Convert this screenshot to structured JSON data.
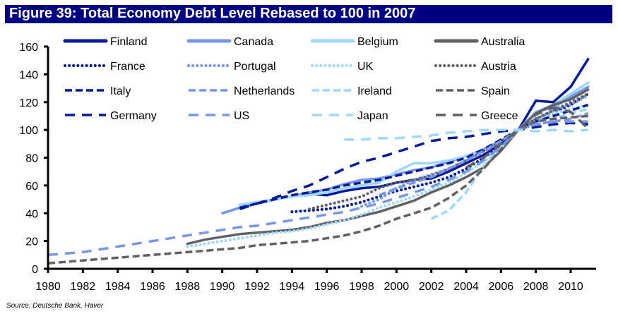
{
  "title": "Figure 39: Total Economy Debt Level Rebased to 100 in 2007",
  "source": "Source: Deutsche Bank, Haver",
  "chart_data": {
    "type": "line",
    "title": "Figure 39: Total Economy Debt Level Rebased to 100 in 2007",
    "xlabel": "",
    "ylabel": "",
    "xlim": [
      1980,
      2011
    ],
    "ylim": [
      0,
      160
    ],
    "y_ticks": [
      0,
      20,
      40,
      60,
      80,
      100,
      120,
      140,
      160
    ],
    "x_ticks": [
      1980,
      1982,
      1984,
      1986,
      1988,
      1990,
      1992,
      1994,
      1996,
      1998,
      2000,
      2002,
      2004,
      2006,
      2008,
      2010
    ],
    "grid": false,
    "legend_position": "top",
    "series": [
      {
        "name": "Finland",
        "color": "#001A9A",
        "style": "solid",
        "x": [
          1994,
          1995,
          1996,
          1997,
          1998,
          1999,
          2000,
          2001,
          2002,
          2003,
          2004,
          2005,
          2006,
          2007,
          2008,
          2009,
          2010,
          2011
        ],
        "y": [
          52,
          54,
          53,
          56,
          58,
          59,
          62,
          64,
          65,
          70,
          76,
          82,
          90,
          100,
          121,
          120,
          131,
          151
        ]
      },
      {
        "name": "Canada",
        "color": "#7896E6",
        "style": "solid",
        "x": [
          1990,
          1991,
          1992,
          1993,
          1994,
          1995,
          1996,
          1997,
          1998,
          1999,
          2000,
          2001,
          2002,
          2003,
          2004,
          2005,
          2006,
          2007,
          2008,
          2009,
          2010,
          2011
        ],
        "y": [
          40,
          44,
          47,
          50,
          52,
          55,
          57,
          61,
          64,
          65,
          68,
          71,
          73,
          77,
          81,
          86,
          92,
          100,
          113,
          116,
          124,
          131
        ]
      },
      {
        "name": "Belgium",
        "color": "#9ED8F6",
        "style": "solid",
        "x": [
          1991,
          1992,
          1993,
          1994,
          1995,
          1996,
          1997,
          1998,
          1999,
          2000,
          2001,
          2002,
          2003,
          2004,
          2005,
          2006,
          2007,
          2008,
          2009,
          2010,
          2011
        ],
        "y": [
          46,
          48,
          50,
          52,
          53,
          55,
          58,
          60,
          62,
          70,
          76,
          76,
          78,
          81,
          85,
          92,
          100,
          113,
          118,
          126,
          134
        ]
      },
      {
        "name": "Australia",
        "color": "#606068",
        "style": "solid",
        "x": [
          1988,
          1989,
          1990,
          1991,
          1992,
          1993,
          1994,
          1995,
          1996,
          1997,
          1998,
          1999,
          2000,
          2001,
          2002,
          2003,
          2004,
          2005,
          2006,
          2007,
          2008,
          2009,
          2010,
          2011
        ],
        "y": [
          18,
          21,
          23,
          25,
          26,
          27,
          28,
          30,
          33,
          35,
          38,
          41,
          45,
          49,
          55,
          60,
          66,
          73,
          85,
          100,
          112,
          118,
          122,
          129
        ]
      },
      {
        "name": "France",
        "color": "#001A9A",
        "style": "dotted",
        "x": [
          1994,
          1995,
          1996,
          1997,
          1998,
          1999,
          2000,
          2001,
          2002,
          2003,
          2004,
          2005,
          2006,
          2007,
          2008,
          2009,
          2010,
          2011
        ],
        "y": [
          41,
          42,
          43,
          45,
          48,
          52,
          56,
          59,
          62,
          66,
          72,
          80,
          89,
          100,
          108,
          112,
          118,
          126
        ]
      },
      {
        "name": "Portugal",
        "color": "#7896E6",
        "style": "dotted",
        "x": [
          1998,
          1999,
          2000,
          2001,
          2002,
          2003,
          2004,
          2005,
          2006,
          2007,
          2008,
          2009,
          2010,
          2011
        ],
        "y": [
          45,
          50,
          58,
          64,
          68,
          72,
          78,
          84,
          92,
          100,
          108,
          114,
          118,
          125
        ]
      },
      {
        "name": "UK",
        "color": "#9ED8F6",
        "style": "dotted",
        "x": [
          1988,
          1989,
          1990,
          1991,
          1992,
          1993,
          1994,
          1995,
          1996,
          1997,
          1998,
          1999,
          2000,
          2001,
          2002,
          2003,
          2004,
          2005,
          2006,
          2007,
          2008,
          2009,
          2010,
          2011
        ],
        "y": [
          16,
          18,
          20,
          22,
          24,
          26,
          27,
          29,
          32,
          35,
          39,
          44,
          48,
          52,
          57,
          62,
          69,
          77,
          87,
          100,
          106,
          112,
          115,
          118
        ]
      },
      {
        "name": "Austria",
        "color": "#606068",
        "style": "dotted",
        "x": [
          1995,
          1996,
          1997,
          1998,
          1999,
          2000,
          2001,
          2002,
          2003,
          2004,
          2005,
          2006,
          2007,
          2008,
          2009,
          2010,
          2011
        ],
        "y": [
          43,
          46,
          49,
          52,
          58,
          62,
          64,
          67,
          72,
          78,
          85,
          92,
          100,
          108,
          114,
          120,
          126
        ]
      },
      {
        "name": "Italy",
        "color": "#001A9A",
        "style": "dashed",
        "x": [
          1991,
          1992,
          1993,
          1994,
          1995,
          1996,
          1997,
          1998,
          1999,
          2000,
          2001,
          2002,
          2003,
          2004,
          2005,
          2006,
          2007,
          2008,
          2009,
          2010,
          2011
        ],
        "y": [
          44,
          47,
          50,
          53,
          55,
          57,
          60,
          62,
          64,
          67,
          70,
          73,
          76,
          80,
          86,
          93,
          100,
          106,
          110,
          114,
          118
        ]
      },
      {
        "name": "Netherlands",
        "color": "#7896E6",
        "style": "dashed",
        "x": [
          1999,
          2000,
          2001,
          2002,
          2003,
          2004,
          2005,
          2006,
          2007,
          2008,
          2009,
          2010,
          2011
        ],
        "y": [
          53,
          58,
          62,
          66,
          72,
          78,
          85,
          92,
          100,
          104,
          106,
          108,
          112
        ]
      },
      {
        "name": "Ireland",
        "color": "#9ED8F6",
        "style": "dashed",
        "x": [
          2002,
          2003,
          2004,
          2005,
          2006,
          2007,
          2008,
          2009,
          2010,
          2011
        ],
        "y": [
          36,
          42,
          55,
          74,
          87,
          100,
          106,
          108,
          112,
          115
        ]
      },
      {
        "name": "Spain",
        "color": "#606068",
        "style": "dashed",
        "x": [
          1980,
          1981,
          1982,
          1983,
          1984,
          1985,
          1986,
          1987,
          1988,
          1989,
          1990,
          1991,
          1992,
          1993,
          1994,
          1995,
          1996,
          1997,
          1998,
          1999,
          2000,
          2001,
          2002,
          2003,
          2004,
          2005,
          2006,
          2007,
          2008,
          2009,
          2010,
          2011
        ],
        "y": [
          4,
          5,
          6,
          7,
          8,
          9,
          10,
          11,
          12,
          13,
          14,
          15,
          17,
          18,
          19,
          20,
          22,
          24,
          27,
          31,
          36,
          40,
          44,
          51,
          60,
          72,
          86,
          100,
          106,
          108,
          109,
          110
        ]
      },
      {
        "name": "Germany",
        "color": "#001A9A",
        "style": "longdash",
        "x": [
          1991,
          1992,
          1993,
          1994,
          1995,
          1996,
          1997,
          1998,
          1999,
          2000,
          2001,
          2002,
          2003,
          2004,
          2005,
          2006,
          2007,
          2008,
          2009,
          2010,
          2011
        ],
        "y": [
          43,
          47,
          51,
          56,
          60,
          66,
          72,
          77,
          80,
          84,
          88,
          92,
          94,
          95,
          97,
          99,
          100,
          102,
          104,
          105,
          104
        ]
      },
      {
        "name": "US",
        "color": "#7896E6",
        "style": "longdash",
        "x": [
          1980,
          1981,
          1982,
          1983,
          1984,
          1985,
          1986,
          1987,
          1988,
          1989,
          1990,
          1991,
          1992,
          1993,
          1994,
          1995,
          1996,
          1997,
          1998,
          1999,
          2000,
          2001,
          2002,
          2003,
          2004,
          2005,
          2006,
          2007,
          2008,
          2009,
          2010,
          2011
        ],
        "y": [
          10,
          11,
          12,
          14,
          16,
          18,
          20,
          22,
          24,
          26,
          28,
          30,
          31,
          33,
          35,
          37,
          39,
          41,
          44,
          47,
          51,
          55,
          59,
          64,
          70,
          78,
          88,
          100,
          104,
          106,
          106,
          106
        ]
      },
      {
        "name": "Japan",
        "color": "#9ED8F6",
        "style": "longdash",
        "x": [
          1997,
          1998,
          1999,
          2000,
          2001,
          2002,
          2003,
          2004,
          2005,
          2006,
          2007,
          2008,
          2009,
          2010,
          2011
        ],
        "y": [
          93,
          93,
          94,
          94,
          95,
          96,
          98,
          99,
          100,
          100,
          100,
          99,
          100,
          99,
          100
        ]
      },
      {
        "name": "Greece",
        "color": "#606068",
        "style": "longdash",
        "x": [
          2004,
          2005,
          2006,
          2007,
          2008,
          2009,
          2010,
          2011
        ],
        "y": [
          73,
          80,
          90,
          100,
          111,
          116,
          113,
          101
        ]
      }
    ]
  }
}
